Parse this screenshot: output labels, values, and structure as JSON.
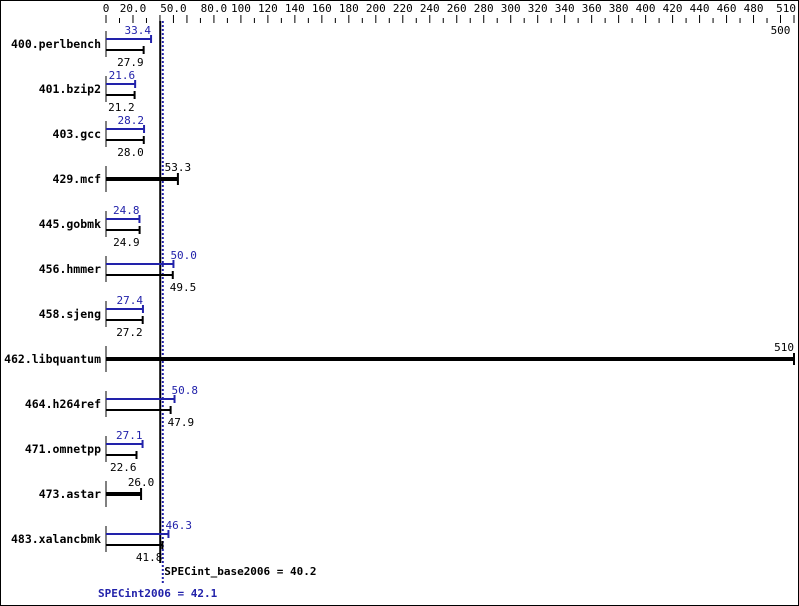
{
  "chart_data": {
    "type": "bar",
    "orientation": "horizontal",
    "xlim": [
      0,
      510
    ],
    "tick_labels": [
      "0",
      "20.0",
      "50.0",
      "80.0",
      "100",
      "120",
      "140",
      "160",
      "180",
      "200",
      "220",
      "240",
      "260",
      "280",
      "300",
      "320",
      "340",
      "360",
      "380",
      "400",
      "420",
      "440",
      "460",
      "480",
      "500",
      "510"
    ],
    "tick_values": [
      0,
      20,
      50,
      80,
      100,
      120,
      140,
      160,
      180,
      200,
      220,
      240,
      260,
      280,
      300,
      320,
      340,
      360,
      380,
      400,
      420,
      440,
      460,
      480,
      500,
      510
    ],
    "categories": [
      "400.perlbench",
      "401.bzip2",
      "403.gcc",
      "429.mcf",
      "445.gobmk",
      "456.hmmer",
      "458.sjeng",
      "462.libquantum",
      "464.h264ref",
      "471.omnetpp",
      "473.astar",
      "483.xalancbmk"
    ],
    "series": [
      {
        "name": "SPECint2006",
        "color": "#2222aa",
        "values": [
          33.4,
          21.6,
          28.2,
          null,
          24.8,
          50.0,
          27.4,
          null,
          50.8,
          27.1,
          null,
          46.3
        ],
        "labels": [
          "33.4",
          "21.6",
          "28.2",
          "",
          "24.8",
          "50.0",
          "27.4",
          "",
          "50.8",
          "27.1",
          "",
          "46.3"
        ]
      },
      {
        "name": "SPECint_base2006",
        "color": "#000000",
        "values": [
          27.9,
          21.2,
          28.0,
          53.3,
          24.9,
          49.5,
          27.2,
          510,
          47.9,
          22.6,
          26.0,
          41.8
        ],
        "labels": [
          "27.9",
          "21.2",
          "28.0",
          "53.3",
          "24.9",
          "49.5",
          "27.2",
          "510",
          "47.9",
          "22.6",
          "26.0",
          "41.8"
        ]
      }
    ],
    "base_mean": {
      "value": 40.2,
      "label": "SPECint_base2006 = 40.2"
    },
    "peak_mean": {
      "value": 42.1,
      "label": "SPECint2006 = 42.1"
    }
  }
}
